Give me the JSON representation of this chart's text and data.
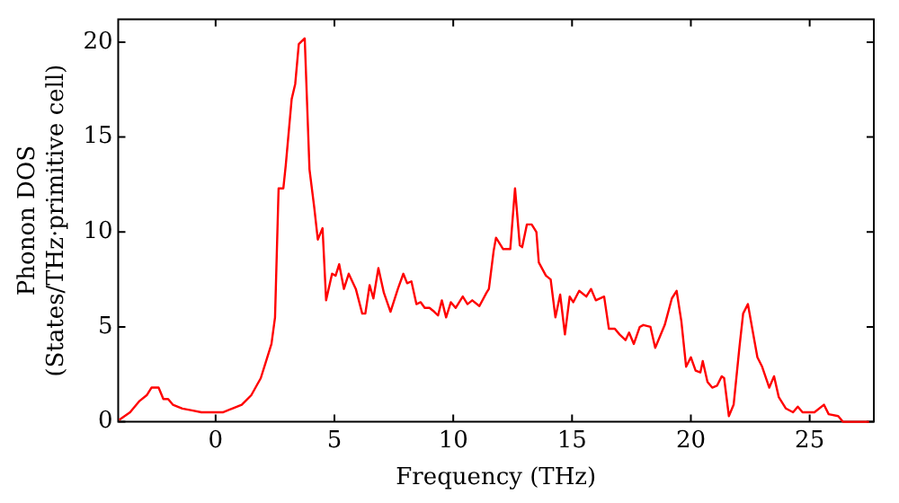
{
  "chart_data": {
    "type": "line",
    "xlabel": "Frequency (THz)",
    "ylabel": "Phonon DOS\n(States/THz·primitive cell)",
    "xlim": [
      -4.1,
      27.7
    ],
    "ylim": [
      0,
      21.2
    ],
    "xticks": [
      0,
      5,
      10,
      15,
      20,
      25
    ],
    "yticks": [
      0,
      5,
      10,
      15,
      20
    ],
    "grid": false,
    "legend": false,
    "marker": "none",
    "line_style": "solid",
    "series": [
      {
        "color": "#ff0000",
        "x": [
          -4.06,
          -3.6,
          -3.2,
          -2.9,
          -2.7,
          -2.4,
          -2.2,
          -2.0,
          -1.8,
          -1.4,
          -1.0,
          -0.6,
          0.3,
          0.7,
          1.1,
          1.5,
          1.9,
          2.1,
          2.35,
          2.5,
          2.65,
          2.85,
          2.95,
          3.2,
          3.35,
          3.5,
          3.75,
          3.95,
          4.15,
          4.3,
          4.5,
          4.65,
          4.9,
          5.05,
          5.2,
          5.4,
          5.6,
          5.9,
          6.17,
          6.3,
          6.48,
          6.64,
          6.85,
          7.08,
          7.36,
          7.67,
          7.9,
          8.06,
          8.24,
          8.45,
          8.63,
          8.8,
          9.0,
          9.2,
          9.36,
          9.52,
          9.7,
          9.9,
          10.1,
          10.4,
          10.6,
          10.8,
          11.1,
          11.4,
          11.5,
          11.7,
          11.8,
          12.1,
          12.4,
          12.6,
          12.8,
          12.9,
          13.1,
          13.3,
          13.5,
          13.6,
          13.9,
          14.1,
          14.3,
          14.5,
          14.7,
          14.9,
          15.05,
          15.3,
          15.6,
          15.8,
          16.0,
          16.35,
          16.55,
          16.8,
          17.0,
          17.25,
          17.4,
          17.6,
          17.85,
          18.0,
          18.3,
          18.5,
          18.7,
          18.9,
          19.2,
          19.4,
          19.6,
          19.8,
          20.0,
          20.2,
          20.4,
          20.5,
          20.7,
          20.9,
          21.1,
          21.3,
          21.4,
          21.6,
          21.8,
          22.05,
          22.2,
          22.4,
          22.6,
          22.8,
          23.0,
          23.3,
          23.5,
          23.7,
          24.0,
          24.3,
          24.5,
          24.7,
          25.2,
          25.6,
          25.8,
          26.2,
          26.4,
          27.5
        ],
        "values": [
          0.1,
          0.5,
          1.1,
          1.4,
          1.8,
          1.8,
          1.2,
          1.2,
          0.9,
          0.7,
          0.6,
          0.5,
          0.5,
          0.7,
          0.9,
          1.4,
          2.3,
          3.1,
          4.1,
          5.5,
          12.3,
          12.3,
          13.5,
          17.0,
          17.8,
          19.9,
          20.2,
          13.3,
          11.3,
          9.6,
          10.2,
          6.4,
          7.8,
          7.7,
          8.3,
          7.0,
          7.8,
          7.0,
          5.7,
          5.7,
          7.2,
          6.5,
          8.1,
          6.8,
          5.8,
          7.0,
          7.8,
          7.3,
          7.4,
          6.2,
          6.3,
          6.0,
          6.0,
          5.8,
          5.6,
          6.4,
          5.5,
          6.3,
          6.0,
          6.6,
          6.2,
          6.4,
          6.1,
          6.8,
          7.0,
          9.0,
          9.7,
          9.1,
          9.1,
          12.3,
          9.3,
          9.2,
          10.4,
          10.4,
          10.0,
          8.4,
          7.7,
          7.5,
          5.5,
          6.7,
          4.6,
          6.6,
          6.3,
          6.9,
          6.6,
          7.0,
          6.4,
          6.6,
          4.9,
          4.9,
          4.6,
          4.3,
          4.7,
          4.1,
          5.0,
          5.1,
          5.0,
          3.9,
          4.5,
          5.1,
          6.5,
          6.9,
          5.3,
          2.9,
          3.4,
          2.7,
          2.6,
          3.2,
          2.1,
          1.8,
          1.9,
          2.4,
          2.3,
          0.3,
          0.9,
          4.0,
          5.7,
          6.2,
          4.8,
          3.4,
          2.9,
          1.8,
          2.4,
          1.3,
          0.7,
          0.5,
          0.8,
          0.5,
          0.5,
          0.9,
          0.4,
          0.3,
          0,
          0
        ]
      }
    ]
  }
}
